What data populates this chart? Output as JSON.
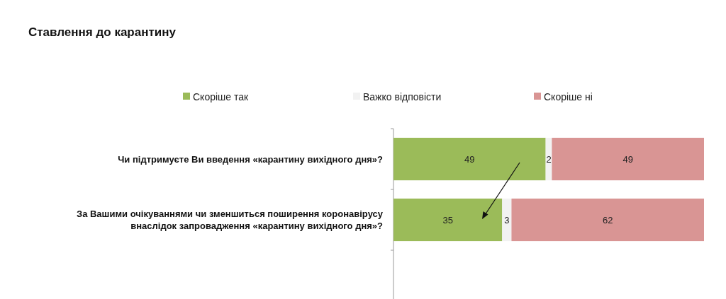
{
  "chart_data": {
    "type": "bar",
    "orientation": "horizontal",
    "stacked": true,
    "title": "Ставлення до карантину",
    "categories": [
      "Чи підтримуєте Ви введення «карантину вихідного дня»?",
      "За Вашими очікуваннями чи зменшиться поширення коронавірусу внаслідок запровадження «карантину вихідного дня»?"
    ],
    "series": [
      {
        "name": "Скоріше так",
        "color": "#9bbb59",
        "values": [
          49,
          35
        ]
      },
      {
        "name": "Важко відповісти",
        "color": "#f2f2f2",
        "values": [
          2,
          3
        ]
      },
      {
        "name": "Скоріше ні",
        "color": "#d99594",
        "values": [
          49,
          62
        ]
      }
    ],
    "xlim": [
      0,
      100
    ],
    "data_labels": true,
    "legend": "top",
    "tick_labels": "y"
  }
}
